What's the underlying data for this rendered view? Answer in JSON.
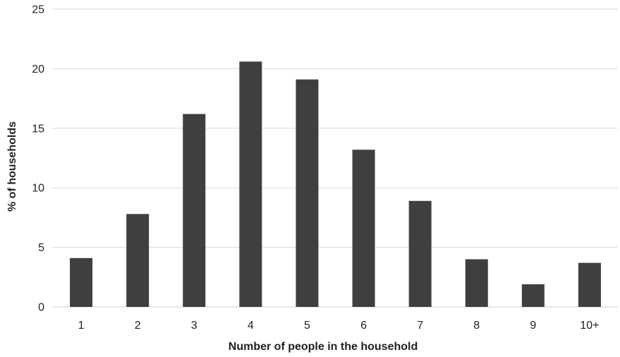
{
  "chart_data": {
    "type": "bar",
    "title": "",
    "xlabel": "Number of people in the household",
    "ylabel": "% of households",
    "categories": [
      "1",
      "2",
      "3",
      "4",
      "5",
      "6",
      "7",
      "8",
      "9",
      "10+"
    ],
    "values": [
      4.1,
      7.8,
      16.2,
      20.6,
      19.1,
      13.2,
      8.9,
      4.0,
      1.9,
      3.7
    ],
    "ylim": [
      0,
      25
    ],
    "yticks": [
      "0",
      "5",
      "10",
      "15",
      "20",
      "25"
    ],
    "grid": true,
    "bar_color": "#3f3f3f",
    "grid_color": "#d9d9d9"
  }
}
